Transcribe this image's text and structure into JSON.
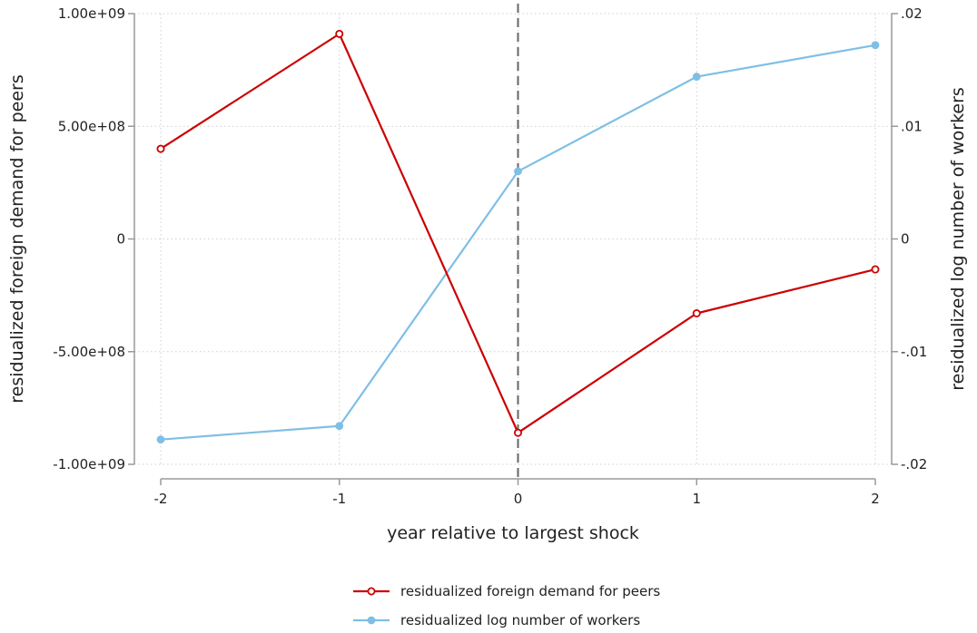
{
  "chart_data": {
    "type": "line",
    "x": [
      -2,
      -1,
      0,
      1,
      2
    ],
    "xlabel": "year relative to largest shock",
    "ylabel_left": "residualized foreign demand for peers",
    "ylabel_right": "residualized log number of workers",
    "xlim": [
      -2,
      2
    ],
    "ylim_left": [
      -1000000000,
      1000000000
    ],
    "ylim_right": [
      -0.02,
      0.02
    ],
    "x_ticks": [
      {
        "value": -2,
        "label": "-2"
      },
      {
        "value": -1,
        "label": "-1"
      },
      {
        "value": 0,
        "label": "0"
      },
      {
        "value": 1,
        "label": "1"
      },
      {
        "value": 2,
        "label": "2"
      }
    ],
    "y_ticks_left": [
      {
        "value": 1000000000,
        "label": "1.00e+09"
      },
      {
        "value": 500000000,
        "label": "5.00e+08"
      },
      {
        "value": 0,
        "label": "0"
      },
      {
        "value": -500000000,
        "label": "-5.00e+08"
      },
      {
        "value": -1000000000,
        "label": "-1.00e+09"
      }
    ],
    "y_ticks_right": [
      {
        "value": 0.02,
        "label": ".02"
      },
      {
        "value": 0.01,
        "label": ".01"
      },
      {
        "value": 0,
        "label": "0"
      },
      {
        "value": -0.01,
        "label": "-.01"
      },
      {
        "value": -0.02,
        "label": "-.02"
      }
    ],
    "vertical_line_x": 0,
    "grid": true,
    "legend_position": "bottom",
    "series": [
      {
        "name": "residualized foreign demand for peers",
        "axis": "left",
        "color": "#cc0000",
        "marker": "hollow-circle",
        "values": [
          400000000,
          910000000,
          -860000000,
          -330000000,
          -135000000
        ]
      },
      {
        "name": "residualized log number of workers",
        "axis": "right",
        "color": "#7fbfe6",
        "marker": "filled-circle",
        "values": [
          -0.0178,
          -0.0166,
          0.006,
          0.0144,
          0.0172
        ]
      }
    ]
  }
}
